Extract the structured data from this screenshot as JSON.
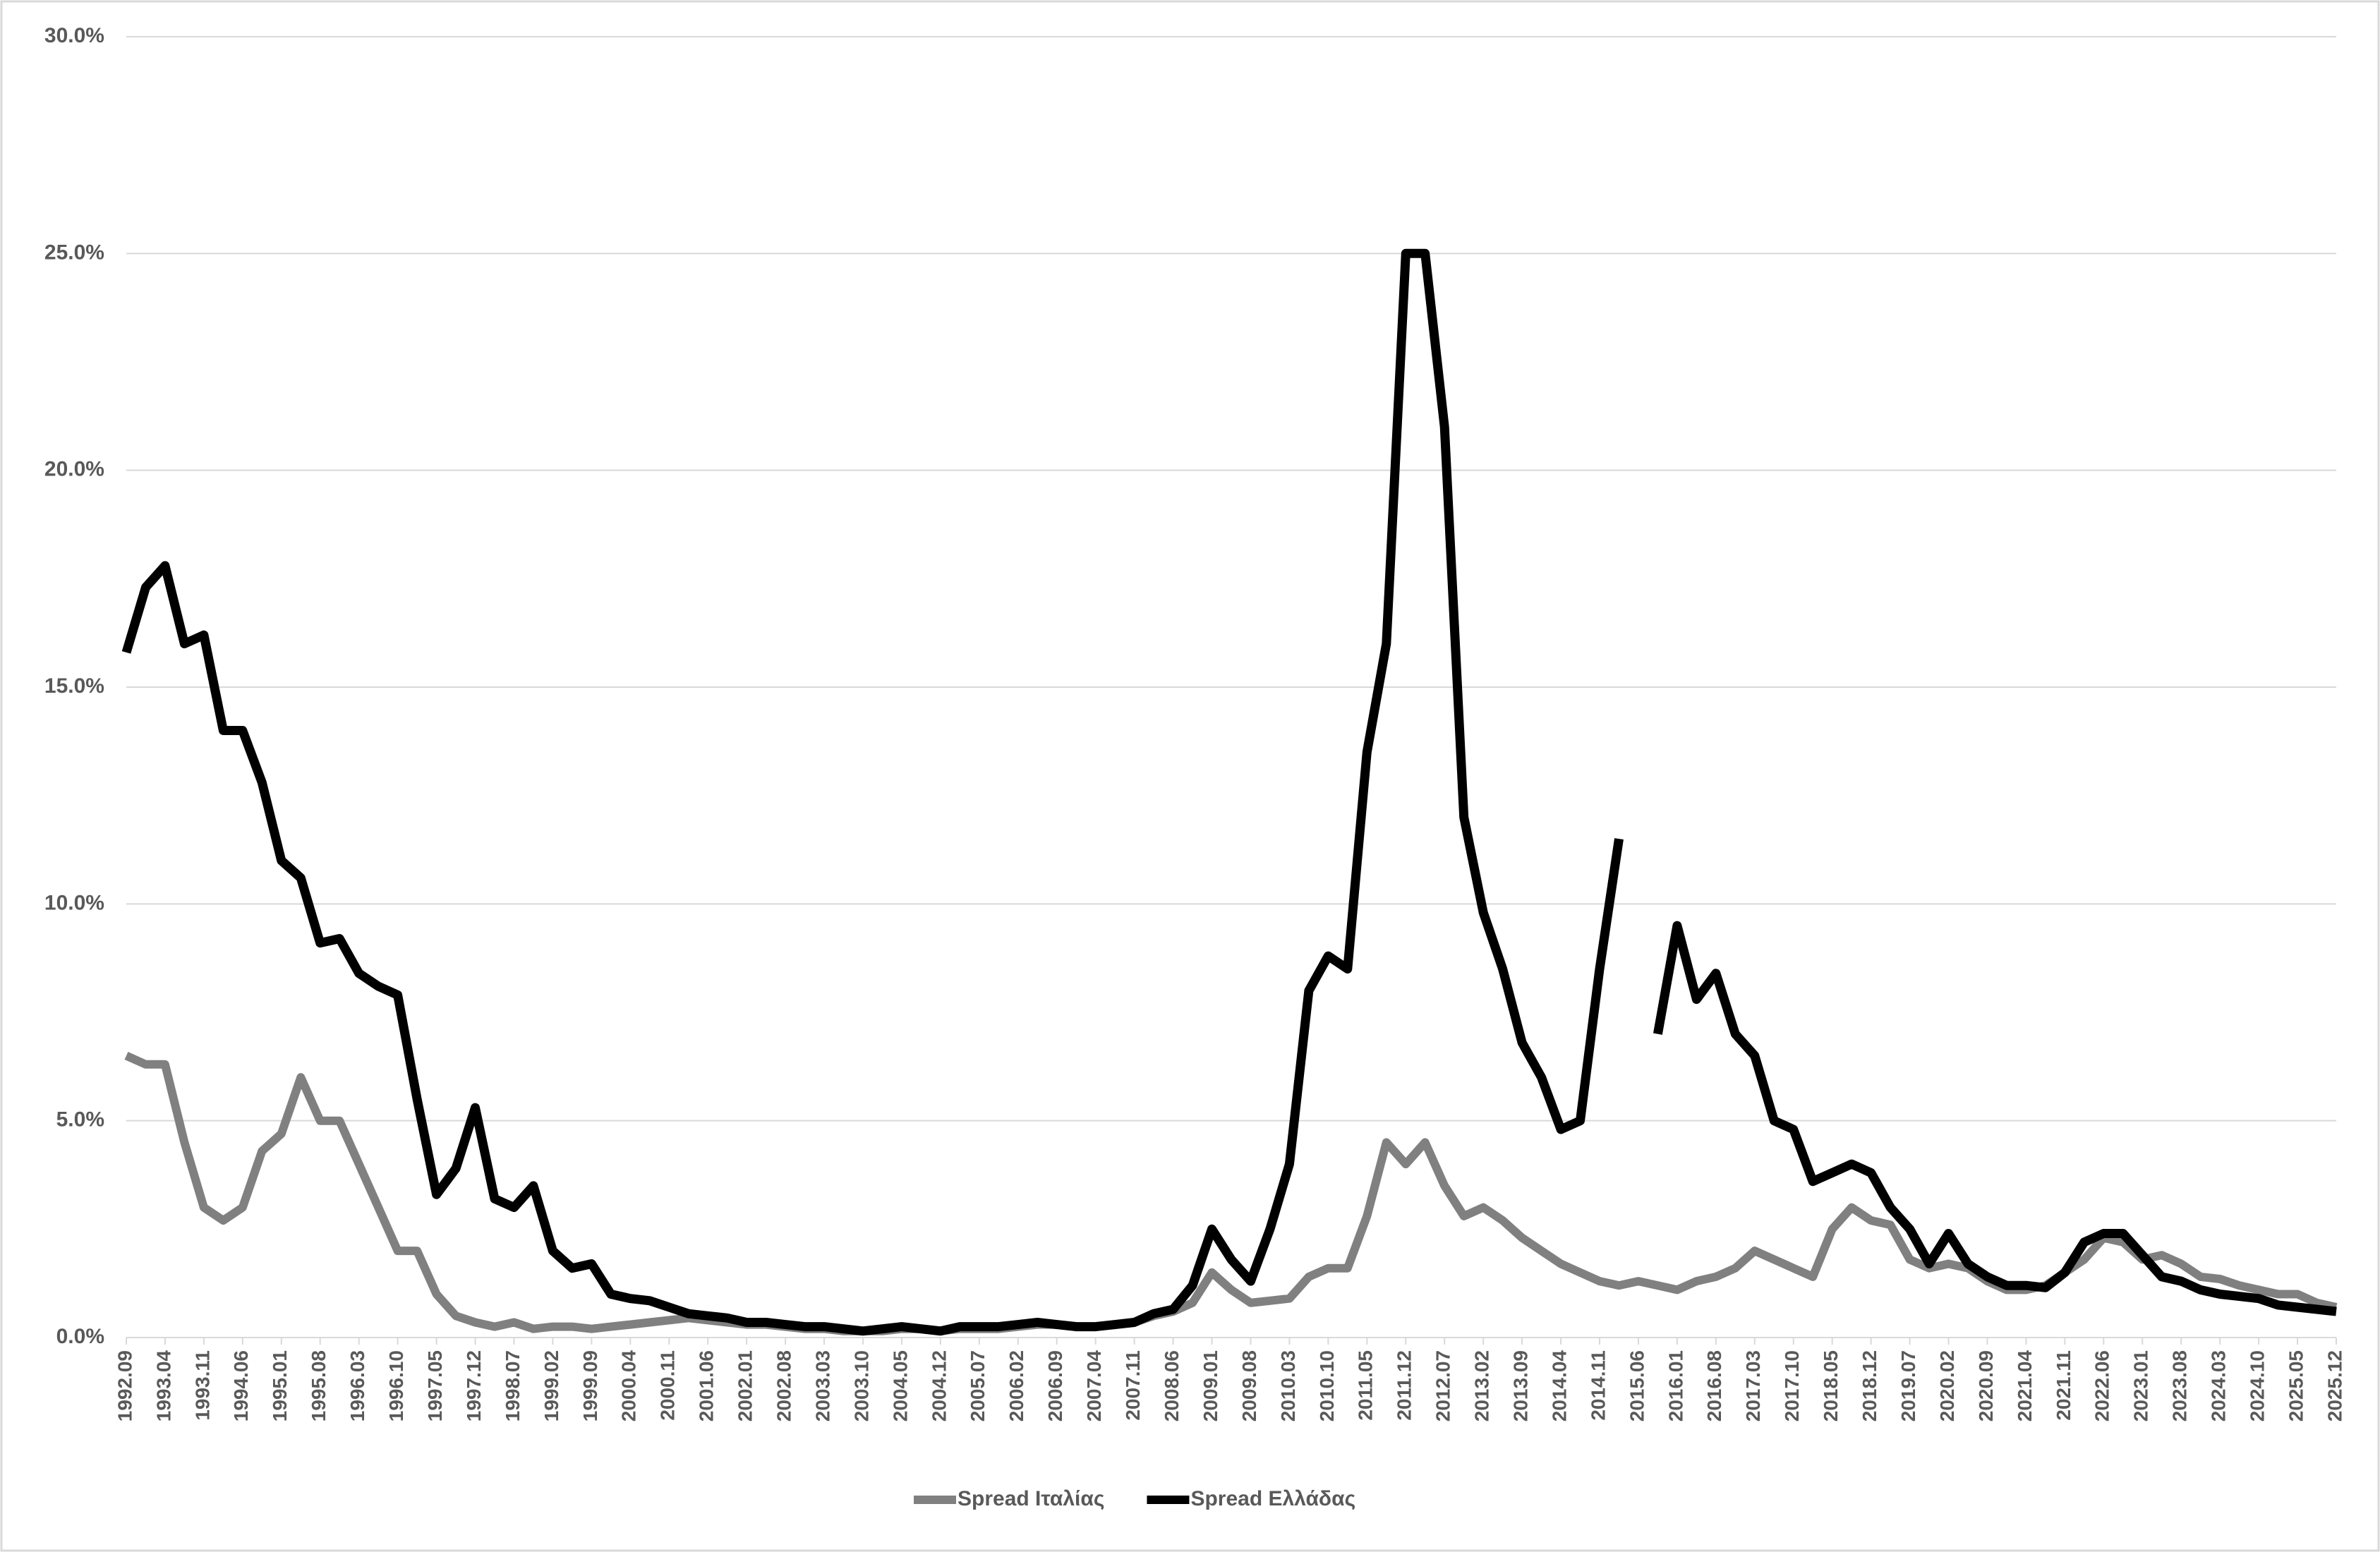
{
  "chart_data": {
    "type": "line",
    "categories": [
      "1992.09",
      null,
      "1993.04",
      null,
      "1993.11",
      null,
      "1994.06",
      null,
      "1995.01",
      null,
      "1995.08",
      null,
      "1996.03",
      null,
      "1996.10",
      null,
      "1997.05",
      null,
      "1997.12",
      null,
      "1998.07",
      null,
      "1999.02",
      null,
      "1999.09",
      null,
      "2000.04",
      null,
      "2000.11",
      null,
      "2001.06",
      null,
      "2002.01",
      null,
      "2002.08",
      null,
      "2003.03",
      null,
      "2003.10",
      null,
      "2004.05",
      null,
      "2004.12",
      null,
      "2005.07",
      null,
      "2006.02",
      null,
      "2006.09",
      null,
      "2007.04",
      null,
      "2007.11",
      null,
      "2008.06",
      null,
      "2009.01",
      null,
      "2009.08",
      null,
      "2010.03",
      null,
      "2010.10",
      null,
      "2011.05",
      null,
      "2011.12",
      null,
      "2012.07",
      null,
      "2013.02",
      null,
      "2013.09",
      null,
      "2014.04",
      null,
      "2014.11",
      null,
      "2015.06",
      null,
      "2016.01",
      null,
      "2016.08",
      null,
      "2017.03",
      null,
      "2017.10",
      null,
      "2018.05",
      null,
      "2018.12",
      null,
      "2019.07",
      null,
      "2020.02",
      null,
      "2020.09",
      null,
      "2021.04",
      null,
      "2021.11",
      null,
      "2022.06",
      null,
      "2023.01",
      null,
      "2023.08",
      null,
      "2024.03",
      null,
      "2024.10",
      null,
      "2025.05",
      null,
      "2025.12"
    ],
    "series": [
      {
        "name": "Spread Ιταλίας",
        "color": "#808080",
        "values": [
          6.5,
          6.3,
          6.3,
          4.5,
          3.0,
          2.7,
          3.0,
          4.3,
          4.7,
          6.0,
          5.0,
          5.0,
          4.0,
          3.0,
          2.0,
          2.0,
          1.0,
          0.5,
          0.35,
          0.25,
          0.35,
          0.2,
          0.25,
          0.25,
          0.2,
          0.25,
          0.3,
          0.35,
          0.4,
          0.45,
          0.4,
          0.35,
          0.3,
          0.3,
          0.25,
          0.2,
          0.2,
          0.15,
          0.15,
          0.15,
          0.2,
          0.2,
          0.15,
          0.2,
          0.2,
          0.2,
          0.25,
          0.3,
          0.3,
          0.25,
          0.25,
          0.3,
          0.35,
          0.5,
          0.6,
          0.8,
          1.5,
          1.1,
          0.8,
          0.85,
          0.9,
          1.4,
          1.6,
          1.6,
          2.8,
          4.5,
          4.0,
          4.5,
          3.5,
          2.8,
          3.0,
          2.7,
          2.3,
          2.0,
          1.7,
          1.5,
          1.3,
          1.2,
          1.3,
          1.2,
          1.1,
          1.3,
          1.4,
          1.6,
          2.0,
          1.8,
          1.6,
          1.4,
          2.5,
          3.0,
          2.7,
          2.6,
          1.8,
          1.6,
          1.7,
          1.6,
          1.3,
          1.1,
          1.1,
          1.2,
          1.5,
          1.8,
          2.3,
          2.2,
          1.8,
          1.9,
          1.7,
          1.4,
          1.35,
          1.2,
          1.1,
          1.0,
          1.0,
          0.8,
          0.7
        ]
      },
      {
        "name": "Spread Ελλάδας",
        "color": "#000000",
        "values": [
          15.8,
          17.3,
          17.8,
          16.0,
          16.2,
          14.0,
          14.0,
          12.8,
          11.0,
          10.6,
          9.1,
          9.2,
          8.4,
          8.1,
          7.9,
          5.5,
          3.3,
          3.9,
          5.3,
          3.2,
          3.0,
          3.5,
          2.0,
          1.6,
          1.7,
          1.0,
          0.9,
          0.85,
          0.7,
          0.55,
          0.5,
          0.45,
          0.35,
          0.35,
          0.3,
          0.25,
          0.25,
          0.2,
          0.15,
          0.2,
          0.25,
          0.2,
          0.15,
          0.25,
          0.25,
          0.25,
          0.3,
          0.35,
          0.3,
          0.25,
          0.25,
          0.3,
          0.35,
          0.55,
          0.65,
          1.2,
          2.5,
          1.8,
          1.3,
          2.5,
          4.0,
          8.0,
          8.8,
          8.5,
          13.5,
          16.0,
          25.0,
          25.0,
          21.0,
          12.0,
          9.8,
          8.5,
          6.8,
          6.0,
          4.8,
          5.0,
          8.5,
          11.5,
          null,
          7.0,
          9.5,
          7.8,
          8.4,
          7.0,
          6.5,
          5.0,
          4.8,
          3.6,
          3.8,
          4.0,
          3.8,
          3.0,
          2.5,
          1.7,
          2.4,
          1.7,
          1.4,
          1.2,
          1.2,
          1.15,
          1.5,
          2.2,
          2.4,
          2.4,
          1.9,
          1.4,
          1.3,
          1.1,
          1.0,
          0.95,
          0.9,
          0.75,
          0.7,
          0.65,
          0.6
        ]
      }
    ],
    "ylim": [
      0,
      30
    ],
    "yticks": [
      {
        "value": 0,
        "label": "0.0%"
      },
      {
        "value": 5,
        "label": "5.0%"
      },
      {
        "value": 10,
        "label": "10.0%"
      },
      {
        "value": 15,
        "label": "15.0%"
      },
      {
        "value": 20,
        "label": "20.0%"
      },
      {
        "value": 25,
        "label": "25.0%"
      },
      {
        "value": 30,
        "label": "30.0%"
      }
    ],
    "grid": true,
    "legend": "bottom"
  }
}
